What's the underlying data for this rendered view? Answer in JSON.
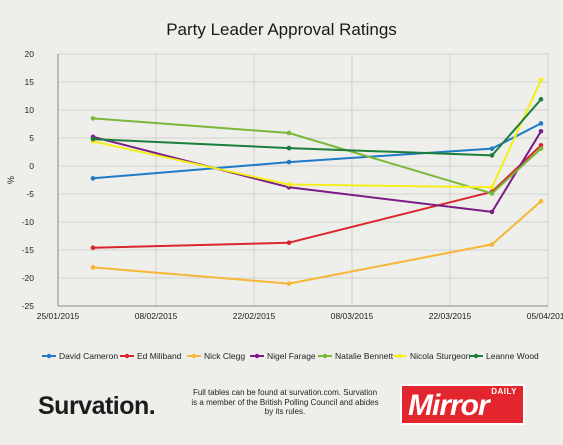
{
  "chart_data": {
    "type": "line",
    "title": "Party Leader Approval Ratings",
    "ylabel": "%",
    "ylim": [
      -25,
      20
    ],
    "yticks": [
      "20",
      "15",
      "10",
      "5",
      "0",
      "-5",
      "-10",
      "-15",
      "-20",
      "-25"
    ],
    "xticks": [
      "25/01/2015",
      "08/02/2015",
      "22/02/2015",
      "08/03/2015",
      "22/03/2015",
      "05/04/2015"
    ],
    "x": [
      "2015-01-30",
      "2015-02-27",
      "2015-03-28",
      "2015-04-04"
    ],
    "grid": true,
    "legend_position": "bottom",
    "series": [
      {
        "name": "David Cameron",
        "color": "#1f7bc8",
        "values": [
          -2.2,
          0.7,
          3.1,
          7.6
        ]
      },
      {
        "name": "Ed Miliband",
        "color": "#d8262c",
        "values": [
          -14.6,
          -13.7,
          -4.6,
          3.7
        ]
      },
      {
        "name": "Nick Clegg",
        "color": "#f8b536",
        "values": [
          -18.1,
          -21.0,
          -14.0,
          -6.3
        ]
      },
      {
        "name": "Nigel Farage",
        "color": "#7b1d86",
        "values": [
          5.2,
          -3.8,
          -8.2,
          6.2
        ]
      },
      {
        "name": "Natalie Bennett",
        "color": "#7bb83a",
        "values": [
          8.5,
          5.9,
          -4.9,
          3.1
        ]
      },
      {
        "name": "Nicola Sturgeon",
        "color": "#f3f019",
        "values": [
          4.4,
          -3.3,
          -3.8,
          15.4
        ]
      },
      {
        "name": "Leanne Wood",
        "color": "#1c7d3c",
        "values": [
          4.8,
          3.2,
          1.9,
          11.9
        ]
      }
    ]
  },
  "footer": {
    "brand": "Survation.",
    "note": "Full tables can be found at survation.com. Survation is a member of the British Polling Council and abides by its rules.",
    "logo_top": "DAILY",
    "logo_main": "Mirror"
  }
}
